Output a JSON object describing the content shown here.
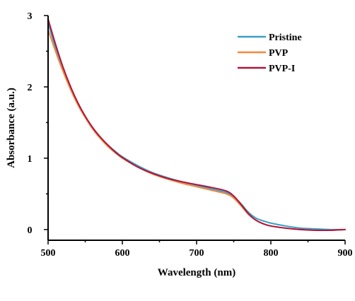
{
  "chart_data": {
    "type": "line",
    "title": "",
    "xlabel": "Wavelength (nm)",
    "ylabel": "Absorbance (a.u.)",
    "xlim": [
      500,
      900
    ],
    "ylim": [
      -0.15,
      3
    ],
    "xticks": [
      500,
      600,
      700,
      800,
      900
    ],
    "yticks": [
      0,
      1,
      2,
      3
    ],
    "legend_position": "top-right",
    "series": [
      {
        "name": "Pristine",
        "color": "#3a9fc4",
        "x": [
          500,
          510,
          520,
          530,
          540,
          550,
          560,
          570,
          580,
          590,
          600,
          620,
          640,
          660,
          680,
          700,
          720,
          740,
          750,
          760,
          770,
          780,
          790,
          800,
          820,
          840,
          860,
          880,
          900
        ],
        "y": [
          2.9,
          2.55,
          2.25,
          1.99,
          1.77,
          1.58,
          1.42,
          1.3,
          1.19,
          1.1,
          1.02,
          0.9,
          0.8,
          0.73,
          0.67,
          0.62,
          0.57,
          0.52,
          0.46,
          0.36,
          0.24,
          0.16,
          0.12,
          0.09,
          0.05,
          0.02,
          0.01,
          0.0,
          0.0
        ]
      },
      {
        "name": "PVP",
        "color": "#f08a3c",
        "x": [
          500,
          510,
          520,
          530,
          540,
          550,
          560,
          570,
          580,
          590,
          600,
          620,
          640,
          660,
          680,
          700,
          720,
          740,
          750,
          760,
          770,
          780,
          790,
          800,
          820,
          840,
          860,
          880,
          900
        ],
        "y": [
          2.8,
          2.5,
          2.22,
          1.97,
          1.75,
          1.57,
          1.41,
          1.28,
          1.17,
          1.08,
          1.0,
          0.88,
          0.78,
          0.71,
          0.65,
          0.6,
          0.55,
          0.5,
          0.44,
          0.33,
          0.21,
          0.13,
          0.08,
          0.05,
          0.02,
          0.0,
          -0.01,
          -0.01,
          0.0
        ]
      },
      {
        "name": "PVP-I",
        "color": "#b0153f",
        "x": [
          500,
          510,
          520,
          530,
          540,
          550,
          560,
          570,
          580,
          590,
          600,
          620,
          640,
          660,
          680,
          700,
          720,
          740,
          750,
          760,
          770,
          780,
          790,
          800,
          820,
          840,
          860,
          880,
          900
        ],
        "y": [
          2.95,
          2.6,
          2.28,
          2.01,
          1.78,
          1.59,
          1.43,
          1.3,
          1.19,
          1.09,
          1.01,
          0.88,
          0.79,
          0.72,
          0.67,
          0.63,
          0.59,
          0.54,
          0.47,
          0.35,
          0.22,
          0.13,
          0.08,
          0.05,
          0.02,
          0.0,
          -0.01,
          -0.01,
          0.0
        ]
      }
    ]
  }
}
